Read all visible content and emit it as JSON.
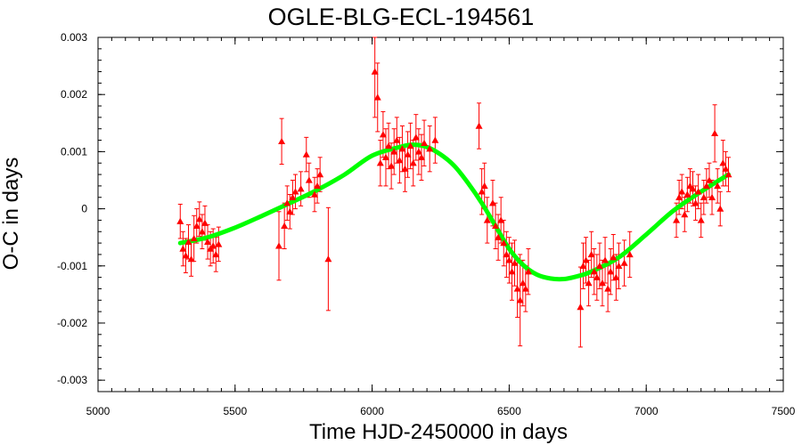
{
  "chart_data": {
    "type": "scatter",
    "title": "OGLE-BLG-ECL-194561",
    "xlabel": "Time HJD-2450000 in days",
    "ylabel": "O-C in days",
    "xlim": [
      5000,
      7500
    ],
    "ylim": [
      -0.0032,
      0.003
    ],
    "xticks": [
      5000,
      5500,
      6000,
      6500,
      7000,
      7500
    ],
    "xtick_labels": [
      "5000",
      "5500",
      "6000",
      "6500",
      "7000",
      "7500"
    ],
    "yticks": [
      0.003,
      0.002,
      0.001,
      0,
      -0.001,
      -0.002,
      -0.003
    ],
    "ytick_labels": [
      "0.003",
      "0.002",
      "0.001",
      "0",
      "-0.001",
      "-0.002",
      "-0.003"
    ],
    "grid": false,
    "colors": {
      "observed": "#ff0000",
      "model": "#00ff00"
    },
    "series": [
      {
        "marker": "triangle",
        "with_error_bars": true,
        "points": [
          {
            "x": 5300,
            "y": -0.00022,
            "err": 0.0003
          },
          {
            "x": 5310,
            "y": -0.0007,
            "err": 0.0003
          },
          {
            "x": 5320,
            "y": -0.00082,
            "err": 0.0003
          },
          {
            "x": 5330,
            "y": -0.00058,
            "err": 0.0003
          },
          {
            "x": 5340,
            "y": -0.00088,
            "err": 0.0003
          },
          {
            "x": 5350,
            "y": -0.00052,
            "err": 0.0004
          },
          {
            "x": 5360,
            "y": -0.0003,
            "err": 0.0003
          },
          {
            "x": 5370,
            "y": -0.00018,
            "err": 0.0003
          },
          {
            "x": 5380,
            "y": -0.0004,
            "err": 0.0003
          },
          {
            "x": 5390,
            "y": -0.00025,
            "err": 0.0003
          },
          {
            "x": 5400,
            "y": -0.00058,
            "err": 0.0003
          },
          {
            "x": 5410,
            "y": -0.0007,
            "err": 0.0003
          },
          {
            "x": 5420,
            "y": -0.00065,
            "err": 0.0003
          },
          {
            "x": 5430,
            "y": -0.0008,
            "err": 0.0003
          },
          {
            "x": 5440,
            "y": -0.00062,
            "err": 0.0003
          },
          {
            "x": 5660,
            "y": -0.00065,
            "err": 0.0006
          },
          {
            "x": 5670,
            "y": 0.00118,
            "err": 0.0004
          },
          {
            "x": 5680,
            "y": -0.0003,
            "err": 0.0004
          },
          {
            "x": 5690,
            "y": 0.0001,
            "err": 0.0003
          },
          {
            "x": 5700,
            "y": -5e-05,
            "err": 0.0003
          },
          {
            "x": 5710,
            "y": 0.0002,
            "err": 0.0003
          },
          {
            "x": 5720,
            "y": 0.0003,
            "err": 0.0003
          },
          {
            "x": 5740,
            "y": 0.00035,
            "err": 0.0003
          },
          {
            "x": 5760,
            "y": 0.00095,
            "err": 0.0003
          },
          {
            "x": 5770,
            "y": 0.0005,
            "err": 0.0003
          },
          {
            "x": 5790,
            "y": 0.00025,
            "err": 0.0003
          },
          {
            "x": 5800,
            "y": 0.0004,
            "err": 0.0003
          },
          {
            "x": 5810,
            "y": 0.0006,
            "err": 0.0003
          },
          {
            "x": 5840,
            "y": -0.00088,
            "err": 0.0009
          },
          {
            "x": 6010,
            "y": 0.0024,
            "err": 0.0008
          },
          {
            "x": 6020,
            "y": 0.00195,
            "err": 0.0006
          },
          {
            "x": 6030,
            "y": 0.0008,
            "err": 0.0004
          },
          {
            "x": 6040,
            "y": 0.0013,
            "err": 0.0004
          },
          {
            "x": 6050,
            "y": 0.0009,
            "err": 0.0005
          },
          {
            "x": 6060,
            "y": 0.0011,
            "err": 0.0004
          },
          {
            "x": 6070,
            "y": 0.00075,
            "err": 0.0004
          },
          {
            "x": 6080,
            "y": 0.001,
            "err": 0.0004
          },
          {
            "x": 6090,
            "y": 0.0012,
            "err": 0.0004
          },
          {
            "x": 6100,
            "y": 0.00085,
            "err": 0.0004
          },
          {
            "x": 6110,
            "y": 0.00105,
            "err": 0.0004
          },
          {
            "x": 6120,
            "y": 0.0007,
            "err": 0.0004
          },
          {
            "x": 6130,
            "y": 0.00095,
            "err": 0.0004
          },
          {
            "x": 6140,
            "y": 0.0011,
            "err": 0.0004
          },
          {
            "x": 6150,
            "y": 0.0008,
            "err": 0.0004
          },
          {
            "x": 6160,
            "y": 0.00125,
            "err": 0.0004
          },
          {
            "x": 6170,
            "y": 0.001,
            "err": 0.0004
          },
          {
            "x": 6180,
            "y": 0.0009,
            "err": 0.0004
          },
          {
            "x": 6190,
            "y": 0.00115,
            "err": 0.0004
          },
          {
            "x": 6210,
            "y": 0.00105,
            "err": 0.0004
          },
          {
            "x": 6230,
            "y": 0.0012,
            "err": 0.0004
          },
          {
            "x": 6390,
            "y": 0.00145,
            "err": 0.0004
          },
          {
            "x": 6400,
            "y": 0.0003,
            "err": 0.0004
          },
          {
            "x": 6410,
            "y": 0.0004,
            "err": 0.0004
          },
          {
            "x": 6420,
            "y": -0.0002,
            "err": 0.0004
          },
          {
            "x": 6440,
            "y": 0.0001,
            "err": 0.0004
          },
          {
            "x": 6450,
            "y": -0.0003,
            "err": 0.0004
          },
          {
            "x": 6460,
            "y": -0.0005,
            "err": 0.0004
          },
          {
            "x": 6470,
            "y": -0.0002,
            "err": 0.0004
          },
          {
            "x": 6480,
            "y": -0.0006,
            "err": 0.0004
          },
          {
            "x": 6490,
            "y": -0.0008,
            "err": 0.0004
          },
          {
            "x": 6500,
            "y": -0.0009,
            "err": 0.0004
          },
          {
            "x": 6510,
            "y": -0.0011,
            "err": 0.0005
          },
          {
            "x": 6520,
            "y": -0.00095,
            "err": 0.0004
          },
          {
            "x": 6530,
            "y": -0.0014,
            "err": 0.0005
          },
          {
            "x": 6540,
            "y": -0.0016,
            "err": 0.0008
          },
          {
            "x": 6550,
            "y": -0.0013,
            "err": 0.0004
          },
          {
            "x": 6560,
            "y": -0.0014,
            "err": 0.0004
          },
          {
            "x": 6570,
            "y": -0.0011,
            "err": 0.0004
          },
          {
            "x": 6760,
            "y": -0.00172,
            "err": 0.0007
          },
          {
            "x": 6770,
            "y": -0.001,
            "err": 0.0004
          },
          {
            "x": 6780,
            "y": -0.0009,
            "err": 0.0004
          },
          {
            "x": 6790,
            "y": -0.0013,
            "err": 0.0004
          },
          {
            "x": 6800,
            "y": -0.0008,
            "err": 0.0004
          },
          {
            "x": 6810,
            "y": -0.0011,
            "err": 0.0004
          },
          {
            "x": 6820,
            "y": -0.0012,
            "err": 0.0004
          },
          {
            "x": 6830,
            "y": -0.001,
            "err": 0.0004
          },
          {
            "x": 6840,
            "y": -0.0013,
            "err": 0.0004
          },
          {
            "x": 6850,
            "y": -0.0009,
            "err": 0.0004
          },
          {
            "x": 6860,
            "y": -0.0014,
            "err": 0.0004
          },
          {
            "x": 6870,
            "y": -0.0011,
            "err": 0.0004
          },
          {
            "x": 6880,
            "y": -0.00085,
            "err": 0.0004
          },
          {
            "x": 6890,
            "y": -0.0012,
            "err": 0.0004
          },
          {
            "x": 6900,
            "y": -0.001,
            "err": 0.0004
          },
          {
            "x": 6920,
            "y": -0.00095,
            "err": 0.0004
          },
          {
            "x": 6940,
            "y": -0.0008,
            "err": 0.0004
          },
          {
            "x": 7110,
            "y": -0.0002,
            "err": 0.0003
          },
          {
            "x": 7120,
            "y": 0.0002,
            "err": 0.0003
          },
          {
            "x": 7130,
            "y": 0.0003,
            "err": 0.0003
          },
          {
            "x": 7140,
            "y": -0.0001,
            "err": 0.0003
          },
          {
            "x": 7150,
            "y": 0.00025,
            "err": 0.0003
          },
          {
            "x": 7160,
            "y": 0.0004,
            "err": 0.0003
          },
          {
            "x": 7170,
            "y": 0.00035,
            "err": 0.0003
          },
          {
            "x": 7180,
            "y": 0.0001,
            "err": 0.0003
          },
          {
            "x": 7190,
            "y": 0.0003,
            "err": 0.0003
          },
          {
            "x": 7200,
            "y": -0.0002,
            "err": 0.0003
          },
          {
            "x": 7210,
            "y": 0.0002,
            "err": 0.0003
          },
          {
            "x": 7220,
            "y": 0.0004,
            "err": 0.0003
          },
          {
            "x": 7230,
            "y": 0.0005,
            "err": 0.0003
          },
          {
            "x": 7240,
            "y": 0.0002,
            "err": 0.0003
          },
          {
            "x": 7250,
            "y": 0.00132,
            "err": 0.0005
          },
          {
            "x": 7260,
            "y": 0.0004,
            "err": 0.0003
          },
          {
            "x": 7270,
            "y": 0.0,
            "err": 0.0003
          },
          {
            "x": 7280,
            "y": 0.0008,
            "err": 0.0004
          },
          {
            "x": 7290,
            "y": 0.0007,
            "err": 0.0003
          },
          {
            "x": 7300,
            "y": 0.0006,
            "err": 0.0003
          }
        ]
      },
      {
        "marker": "line",
        "x": [
          5300,
          5400,
          5500,
          5600,
          5700,
          5800,
          5900,
          6000,
          6100,
          6150,
          6200,
          6250,
          6300,
          6350,
          6400,
          6450,
          6500,
          6550,
          6600,
          6650,
          6700,
          6750,
          6800,
          6900,
          7000,
          7100,
          7200,
          7300
        ],
        "y": [
          -0.0006,
          -0.0005,
          -0.00033,
          -0.00012,
          0.0001,
          0.00033,
          0.0006,
          0.00093,
          0.00108,
          0.00112,
          0.00108,
          0.00095,
          0.00075,
          0.00045,
          0.0001,
          -0.0003,
          -0.0007,
          -0.00098,
          -0.00115,
          -0.00122,
          -0.00123,
          -0.00118,
          -0.0011,
          -0.00085,
          -0.00045,
          -3e-05,
          0.0003,
          0.0006
        ]
      }
    ]
  }
}
